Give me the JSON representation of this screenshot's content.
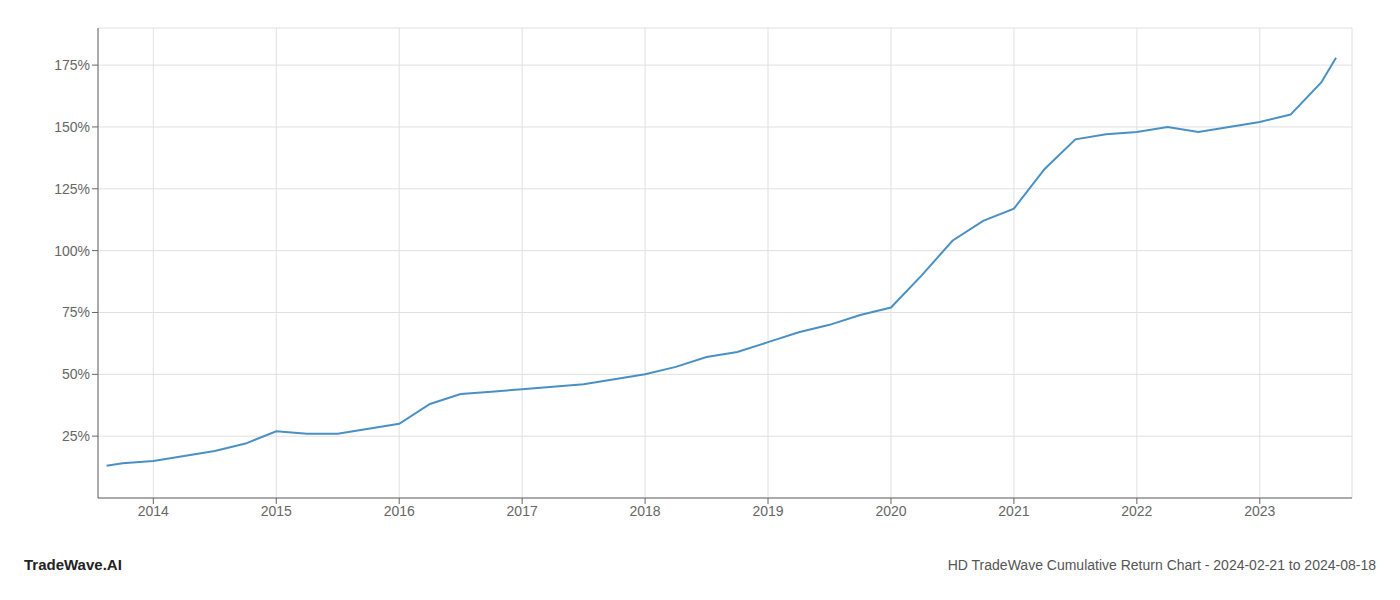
{
  "chart_data": {
    "type": "line",
    "title": "HD TradeWave Cumulative Return Chart - 2024-02-21 to 2024-08-18",
    "annotations": [
      "TradeWave.AI"
    ],
    "x": [
      2013.62,
      2013.75,
      2014.0,
      2014.25,
      2014.5,
      2014.75,
      2015.0,
      2015.25,
      2015.5,
      2015.75,
      2016.0,
      2016.25,
      2016.5,
      2016.75,
      2017.0,
      2017.25,
      2017.5,
      2017.75,
      2018.0,
      2018.25,
      2018.5,
      2018.75,
      2019.0,
      2019.25,
      2019.5,
      2019.75,
      2020.0,
      2020.25,
      2020.5,
      2020.75,
      2021.0,
      2021.25,
      2021.5,
      2021.75,
      2022.0,
      2022.25,
      2022.5,
      2022.75,
      2023.0,
      2023.25,
      2023.5,
      2023.62
    ],
    "values": [
      13,
      14,
      15,
      17,
      19,
      22,
      27,
      26,
      26,
      28,
      30,
      38,
      42,
      43,
      44,
      45,
      46,
      48,
      50,
      53,
      57,
      59,
      63,
      67,
      70,
      74,
      77,
      90,
      104,
      112,
      117,
      133,
      145,
      147,
      148,
      150,
      148,
      150,
      152,
      155,
      168,
      178
    ],
    "color": "#4a90c4",
    "xlim": [
      2013.55,
      2023.75
    ],
    "xticks": [
      2014,
      2015,
      2016,
      2017,
      2018,
      2019,
      2020,
      2021,
      2022,
      2023
    ],
    "ylim": [
      0,
      190
    ],
    "yticks": [
      {
        "value": 25,
        "label": "25%"
      },
      {
        "value": 50,
        "label": "50%"
      },
      {
        "value": 75,
        "label": "75%"
      },
      {
        "value": 100,
        "label": "100%"
      },
      {
        "value": 125,
        "label": "125%"
      },
      {
        "value": 150,
        "label": "150%"
      },
      {
        "value": 175,
        "label": "175%"
      }
    ],
    "grid": true
  }
}
